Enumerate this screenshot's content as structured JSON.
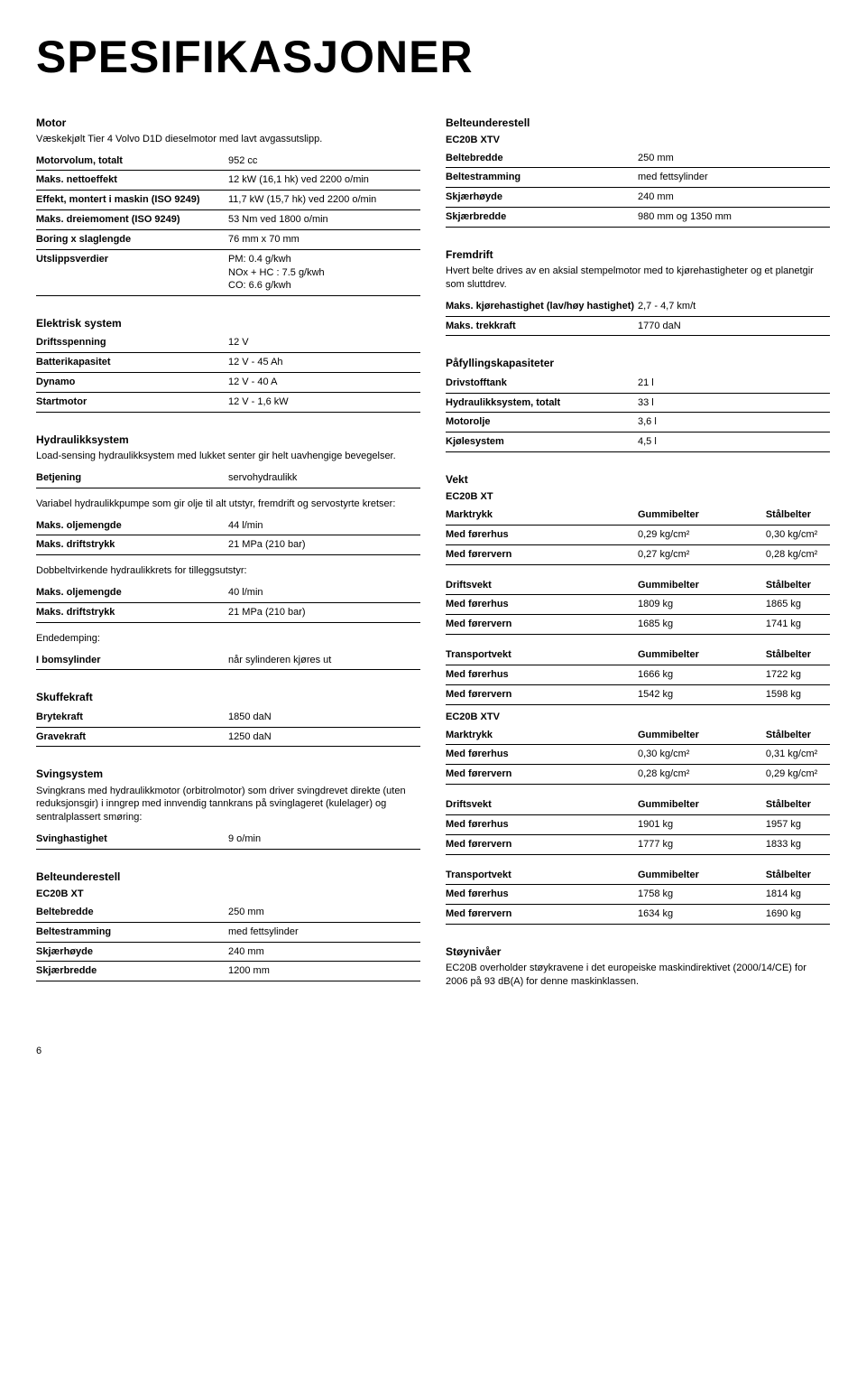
{
  "title": "SPESIFIKASJONER",
  "page_number": "6",
  "motor": {
    "heading": "Motor",
    "desc": "Væskekjølt Tier 4 Volvo D1D dieselmotor med lavt avgassutslipp.",
    "rows": [
      {
        "l": "Motorvolum, totalt",
        "v": "952 cc"
      },
      {
        "l": "Maks. nettoeffekt",
        "v": "12 kW (16,1 hk) ved 2200 o/min"
      },
      {
        "l": "Effekt, montert i maskin (ISO 9249)",
        "v": "11,7 kW (15,7 hk) ved 2200 o/min"
      },
      {
        "l": "Maks. dreiemoment (ISO 9249)",
        "v": "53 Nm ved 1800 o/min"
      },
      {
        "l": "Boring x slaglengde",
        "v": "76 mm x 70 mm"
      },
      {
        "l": "Utslippsverdier",
        "v": "PM: 0.4 g/kwh\nNOx + HC : 7.5 g/kwh\nCO: 6.6 g/kwh"
      }
    ]
  },
  "elektrisk": {
    "heading": "Elektrisk system",
    "rows": [
      {
        "l": "Driftsspenning",
        "v": "12 V"
      },
      {
        "l": "Batterikapasitet",
        "v": "12 V - 45 Ah"
      },
      {
        "l": "Dynamo",
        "v": "12 V - 40 A"
      },
      {
        "l": "Startmotor",
        "v": "12 V - 1,6 kW"
      }
    ]
  },
  "hydraulikk": {
    "heading": "Hydraulikksystem",
    "desc": "Load-sensing hydraulikksystem med lukket senter gir helt uavhengige bevegelser.",
    "rows1": [
      {
        "l": "Betjening",
        "v": "servohydraulikk"
      }
    ],
    "desc2": "Variabel hydraulikkpumpe som gir olje til alt utstyr, fremdrift og servostyrte kretser:",
    "rows2": [
      {
        "l": "Maks. oljemengde",
        "v": "44 l/min"
      },
      {
        "l": "Maks. driftstrykk",
        "v": "21 MPa (210 bar)"
      }
    ],
    "desc3": "Dobbeltvirkende hydraulikkrets for tilleggsutstyr:",
    "rows3": [
      {
        "l": "Maks. oljemengde",
        "v": "40 l/min"
      },
      {
        "l": "Maks. driftstrykk",
        "v": "21 MPa (210 bar)"
      }
    ],
    "desc4": "Endedemping:",
    "rows4": [
      {
        "l": "I bomsylinder",
        "v": "når sylinderen kjøres ut"
      }
    ]
  },
  "skuffe": {
    "heading": "Skuffekraft",
    "rows": [
      {
        "l": "Brytekraft",
        "v": "1850 daN"
      },
      {
        "l": "Gravekraft",
        "v": "1250 daN"
      }
    ]
  },
  "sving": {
    "heading": "Svingsystem",
    "desc": "Svingkrans med hydraulikkmotor (orbitrolmotor) som driver svingdrevet direkte (uten reduksjonsgir) i inngrep med innvendig tannkrans på svinglageret (kulelager) og sentralplassert smøring:",
    "rows": [
      {
        "l": "Svinghastighet",
        "v": "9 o/min"
      }
    ]
  },
  "belte_xt": {
    "heading": "Belteunderestell",
    "model": "EC20B XT",
    "rows": [
      {
        "l": "Beltebredde",
        "v": "250 mm"
      },
      {
        "l": "Beltestramming",
        "v": "med fettsylinder"
      },
      {
        "l": "Skjærhøyde",
        "v": "240 mm"
      },
      {
        "l": "Skjærbredde",
        "v": "1200 mm"
      }
    ]
  },
  "belte_xtv": {
    "heading": "Belteunderestell",
    "model": "EC20B XTV",
    "rows": [
      {
        "l": "Beltebredde",
        "v": "250 mm"
      },
      {
        "l": "Beltestramming",
        "v": "med fettsylinder"
      },
      {
        "l": "Skjærhøyde",
        "v": "240 mm"
      },
      {
        "l": "Skjærbredde",
        "v": "980 mm og 1350 mm"
      }
    ]
  },
  "fremdrift": {
    "heading": "Fremdrift",
    "desc": "Hvert belte drives av en aksial stempelmotor med to kjørehastigheter og et planetgir som sluttdrev.",
    "rows": [
      {
        "l": "Maks. kjørehastighet (lav/høy hastighet)",
        "v": "2,7 - 4,7 km/t"
      },
      {
        "l": "Maks. trekkraft",
        "v": "1770 daN"
      }
    ]
  },
  "kapasitet": {
    "heading": "Påfyllingskapasiteter",
    "rows": [
      {
        "l": "Drivstofftank",
        "v": "21 l"
      },
      {
        "l": "Hydraulikksystem, totalt",
        "v": "33 l"
      },
      {
        "l": "Motorolje",
        "v": "3,6 l"
      },
      {
        "l": "Kjølesystem",
        "v": "4,5 l"
      }
    ]
  },
  "vekt": {
    "heading": "Vekt",
    "col_headers": [
      "Gummibelter",
      "Stålbelter"
    ],
    "xt_label": "EC20B XT",
    "xtv_label": "EC20B XTV",
    "groups_xt": [
      {
        "title": "Marktrykk",
        "rows": [
          {
            "l": "Med førerhus",
            "c1": "0,29 kg/cm²",
            "c2": "0,30 kg/cm²"
          },
          {
            "l": "Med førervern",
            "c1": "0,27 kg/cm²",
            "c2": "0,28 kg/cm²"
          }
        ]
      },
      {
        "title": "Driftsvekt",
        "rows": [
          {
            "l": "Med førerhus",
            "c1": "1809 kg",
            "c2": "1865 kg"
          },
          {
            "l": "Med førervern",
            "c1": "1685 kg",
            "c2": "1741 kg"
          }
        ]
      },
      {
        "title": "Transportvekt",
        "rows": [
          {
            "l": "Med førerhus",
            "c1": "1666 kg",
            "c2": "1722 kg"
          },
          {
            "l": "Med førervern",
            "c1": "1542 kg",
            "c2": "1598 kg"
          }
        ]
      }
    ],
    "groups_xtv": [
      {
        "title": "Marktrykk",
        "rows": [
          {
            "l": "Med førerhus",
            "c1": "0,30 kg/cm²",
            "c2": "0,31 kg/cm²"
          },
          {
            "l": "Med førervern",
            "c1": "0,28 kg/cm²",
            "c2": "0,29 kg/cm²"
          }
        ]
      },
      {
        "title": "Driftsvekt",
        "rows": [
          {
            "l": "Med førerhus",
            "c1": "1901 kg",
            "c2": "1957 kg"
          },
          {
            "l": "Med førervern",
            "c1": "1777 kg",
            "c2": "1833 kg"
          }
        ]
      },
      {
        "title": "Transportvekt",
        "rows": [
          {
            "l": "Med førerhus",
            "c1": "1758 kg",
            "c2": "1814 kg"
          },
          {
            "l": "Med førervern",
            "c1": "1634 kg",
            "c2": "1690 kg"
          }
        ]
      }
    ]
  },
  "stoy": {
    "heading": "Støynivåer",
    "desc": "EC20B overholder støykravene i det europeiske maskindirektivet (2000/14/CE) for 2006 på 93 dB(A) for denne maskinklassen."
  }
}
